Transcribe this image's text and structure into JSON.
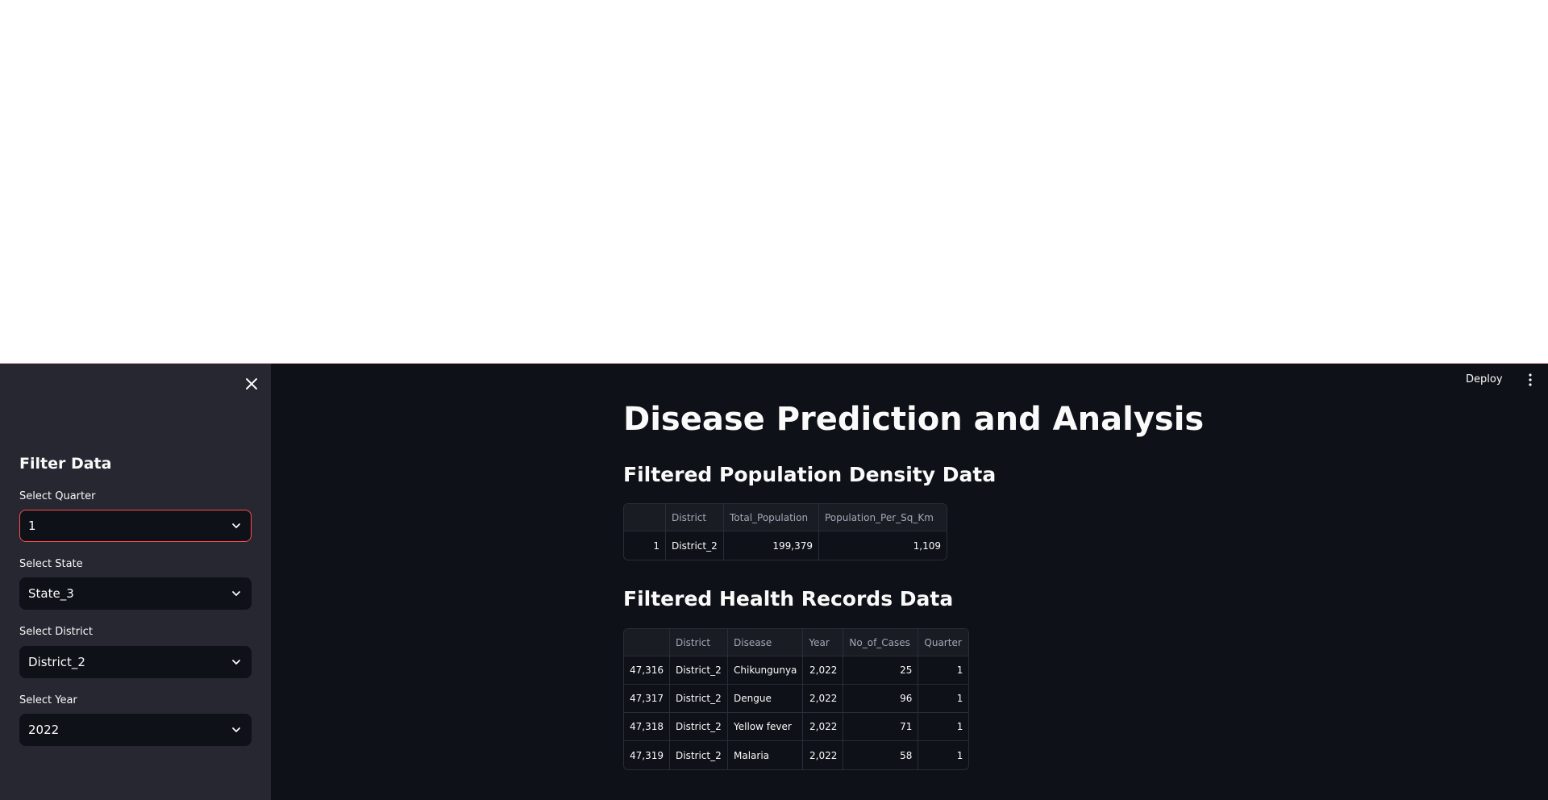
{
  "sidebar": {
    "heading": "Filter Data",
    "filters": [
      {
        "label": "Select Quarter",
        "value": "1"
      },
      {
        "label": "Select State",
        "value": "State_3"
      },
      {
        "label": "Select District",
        "value": "District_2"
      },
      {
        "label": "Select Year",
        "value": "2022"
      }
    ]
  },
  "header": {
    "deploy_label": "Deploy"
  },
  "main": {
    "title": "Disease Prediction and Analysis",
    "population_section": {
      "title": "Filtered Population Density Data",
      "columns": [
        "",
        "District",
        "Total_Population",
        "Population_Per_Sq_Km"
      ],
      "rows": [
        [
          "1",
          "District_2",
          "199,379",
          "1,109"
        ]
      ]
    },
    "health_section": {
      "title": "Filtered Health Records Data",
      "columns": [
        "",
        "District",
        "Disease",
        "Year",
        "No_of_Cases",
        "Quarter"
      ],
      "rows": [
        [
          "47,316",
          "District_2",
          "Chikungunya",
          "2,022",
          "25",
          "1"
        ],
        [
          "47,317",
          "District_2",
          "Dengue",
          "2,022",
          "96",
          "1"
        ],
        [
          "47,318",
          "District_2",
          "Yellow fever",
          "2,022",
          "71",
          "1"
        ],
        [
          "47,319",
          "District_2",
          "Malaria",
          "2,022",
          "58",
          "1"
        ]
      ]
    }
  },
  "colors": {
    "accent": "#ff4b4b",
    "background": "#0e1117",
    "sidebar": "#262730"
  },
  "icons": {
    "close": "close-icon",
    "chevron": "chevron-down-icon",
    "menu": "vertical-ellipsis-icon"
  }
}
